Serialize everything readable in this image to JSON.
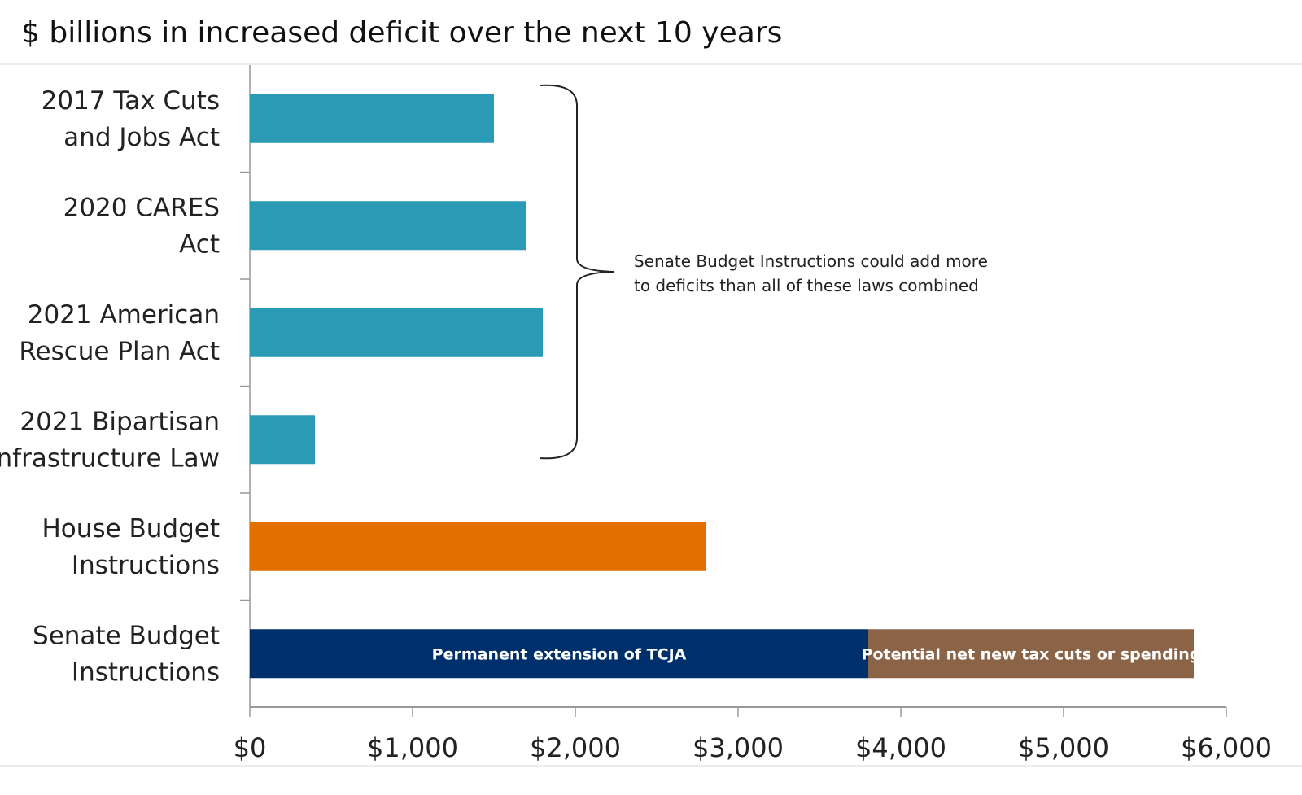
{
  "chart_data": {
    "type": "bar",
    "orientation": "horizontal",
    "stacked": true,
    "title": "$ billions in increased deficit over the next 10 years",
    "xlabel": "",
    "ylabel": "",
    "xlim": [
      0,
      6000
    ],
    "x_ticks": [
      "$0",
      "$1,000",
      "$2,000",
      "$3,000",
      "$4,000",
      "$5,000",
      "$6,000"
    ],
    "x_tick_values": [
      0,
      1000,
      2000,
      3000,
      4000,
      5000,
      6000
    ],
    "grid": false,
    "categories": [
      [
        "2017 Tax Cuts",
        "and Jobs Act"
      ],
      [
        "2020 CARES",
        "Act"
      ],
      [
        "2021 American",
        "Rescue Plan Act"
      ],
      [
        "2021 Bipartisan",
        "Infrastructure Law"
      ],
      [
        "House Budget",
        "Instructions"
      ],
      [
        "Senate Budget",
        "Instructions"
      ]
    ],
    "bars": [
      {
        "segments": [
          {
            "value": 1500,
            "color": "#2B9BB5"
          }
        ]
      },
      {
        "segments": [
          {
            "value": 1700,
            "color": "#2B9BB5"
          }
        ]
      },
      {
        "segments": [
          {
            "value": 1800,
            "color": "#2B9BB5"
          }
        ]
      },
      {
        "segments": [
          {
            "value": 400,
            "color": "#2B9BB5"
          }
        ]
      },
      {
        "segments": [
          {
            "value": 2800,
            "color": "#E36F00"
          }
        ]
      },
      {
        "segments": [
          {
            "value": 3800,
            "color": "#00306B",
            "label": "Permanent extension of TCJA"
          },
          {
            "value": 2000,
            "color": "#8B6448",
            "label": "Potential net new tax cuts or spending"
          }
        ]
      }
    ],
    "annotation": {
      "lines": [
        "Senate Budget Instructions could add more",
        "to deficits than all of these laws combined"
      ],
      "brace_spans": "first four bars"
    }
  }
}
